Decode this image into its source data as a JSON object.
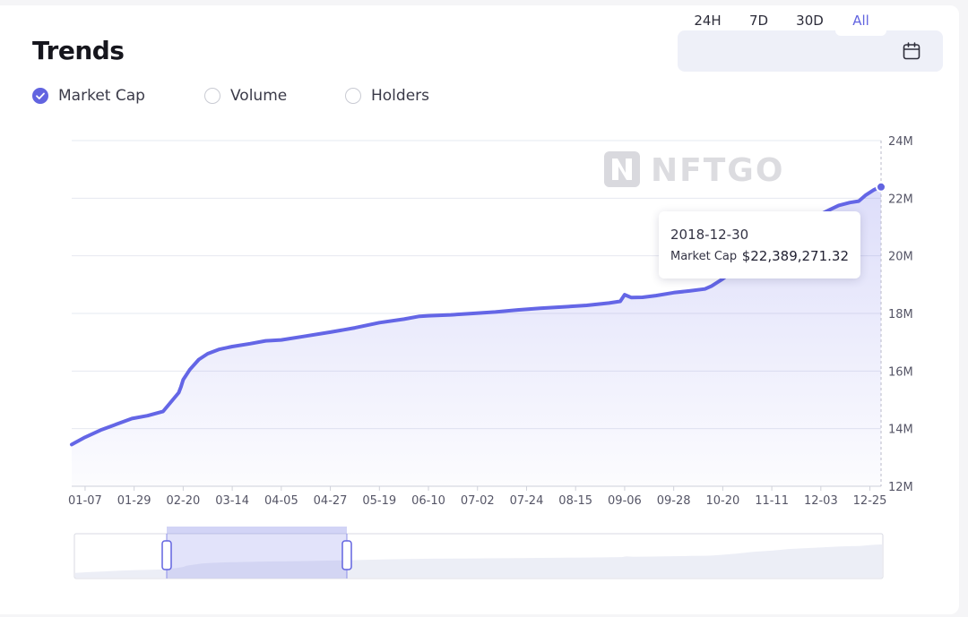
{
  "title": "Trends",
  "time_ranges": [
    "24H",
    "7D",
    "30D",
    "All"
  ],
  "active_range": "All",
  "metrics": [
    {
      "label": "Market Cap",
      "checked": true
    },
    {
      "label": "Volume",
      "checked": false
    },
    {
      "label": "Holders",
      "checked": false
    }
  ],
  "watermark": "NFTGO",
  "tooltip": {
    "date": "2018-12-30",
    "label": "Market Cap",
    "value": "$22,389,271.32"
  },
  "colors": {
    "accent": "#6264e0",
    "line": "#6466e6",
    "grid": "#e6e8f0",
    "axis_text": "#555566"
  },
  "chart_data": {
    "type": "area",
    "series": [
      {
        "name": "Market Cap",
        "x": [
          "01-01",
          "01-07",
          "01-14",
          "01-21",
          "01-28",
          "02-04",
          "02-11",
          "02-18",
          "02-19",
          "02-20",
          "02-23",
          "02-27",
          "03-03",
          "03-08",
          "03-14",
          "03-22",
          "03-29",
          "04-05",
          "04-15",
          "04-27",
          "05-08",
          "05-19",
          "05-30",
          "06-06",
          "06-10",
          "06-20",
          "06-30",
          "07-10",
          "07-20",
          "07-30",
          "08-10",
          "08-20",
          "08-30",
          "09-04",
          "09-06",
          "09-09",
          "09-14",
          "09-20",
          "09-28",
          "10-05",
          "10-12",
          "10-15",
          "10-20",
          "10-26",
          "11-02",
          "11-11",
          "11-18",
          "11-25",
          "12-03",
          "12-07",
          "12-11",
          "12-16",
          "12-20",
          "12-23",
          "12-27",
          "12-30"
        ],
        "y": [
          13.45,
          13.7,
          13.95,
          14.15,
          14.35,
          14.45,
          14.6,
          15.25,
          15.45,
          15.7,
          16.05,
          16.4,
          16.6,
          16.75,
          16.85,
          16.95,
          17.05,
          17.08,
          17.2,
          17.35,
          17.5,
          17.68,
          17.8,
          17.9,
          17.92,
          17.95,
          18.0,
          18.05,
          18.12,
          18.18,
          18.23,
          18.28,
          18.36,
          18.42,
          18.65,
          18.55,
          18.56,
          18.62,
          18.72,
          18.78,
          18.85,
          18.95,
          19.2,
          19.55,
          20.05,
          20.5,
          20.95,
          21.2,
          21.45,
          21.6,
          21.75,
          21.85,
          21.9,
          22.1,
          22.3,
          22.39
        ]
      }
    ],
    "x_ticks": [
      "01-07",
      "01-29",
      "02-20",
      "03-14",
      "04-05",
      "04-27",
      "05-19",
      "06-10",
      "07-02",
      "07-24",
      "08-15",
      "09-06",
      "09-28",
      "10-20",
      "11-11",
      "12-03",
      "12-25"
    ],
    "y_ticks": [
      12,
      14,
      16,
      18,
      20,
      22,
      24
    ],
    "y_tick_labels": [
      "12M",
      "14M",
      "16M",
      "18M",
      "20M",
      "22M",
      "24M"
    ],
    "ylim": [
      12,
      24
    ],
    "y_axis_side": "right",
    "grid": true,
    "title": "",
    "xlabel": "",
    "ylabel": "",
    "legend": "none"
  }
}
